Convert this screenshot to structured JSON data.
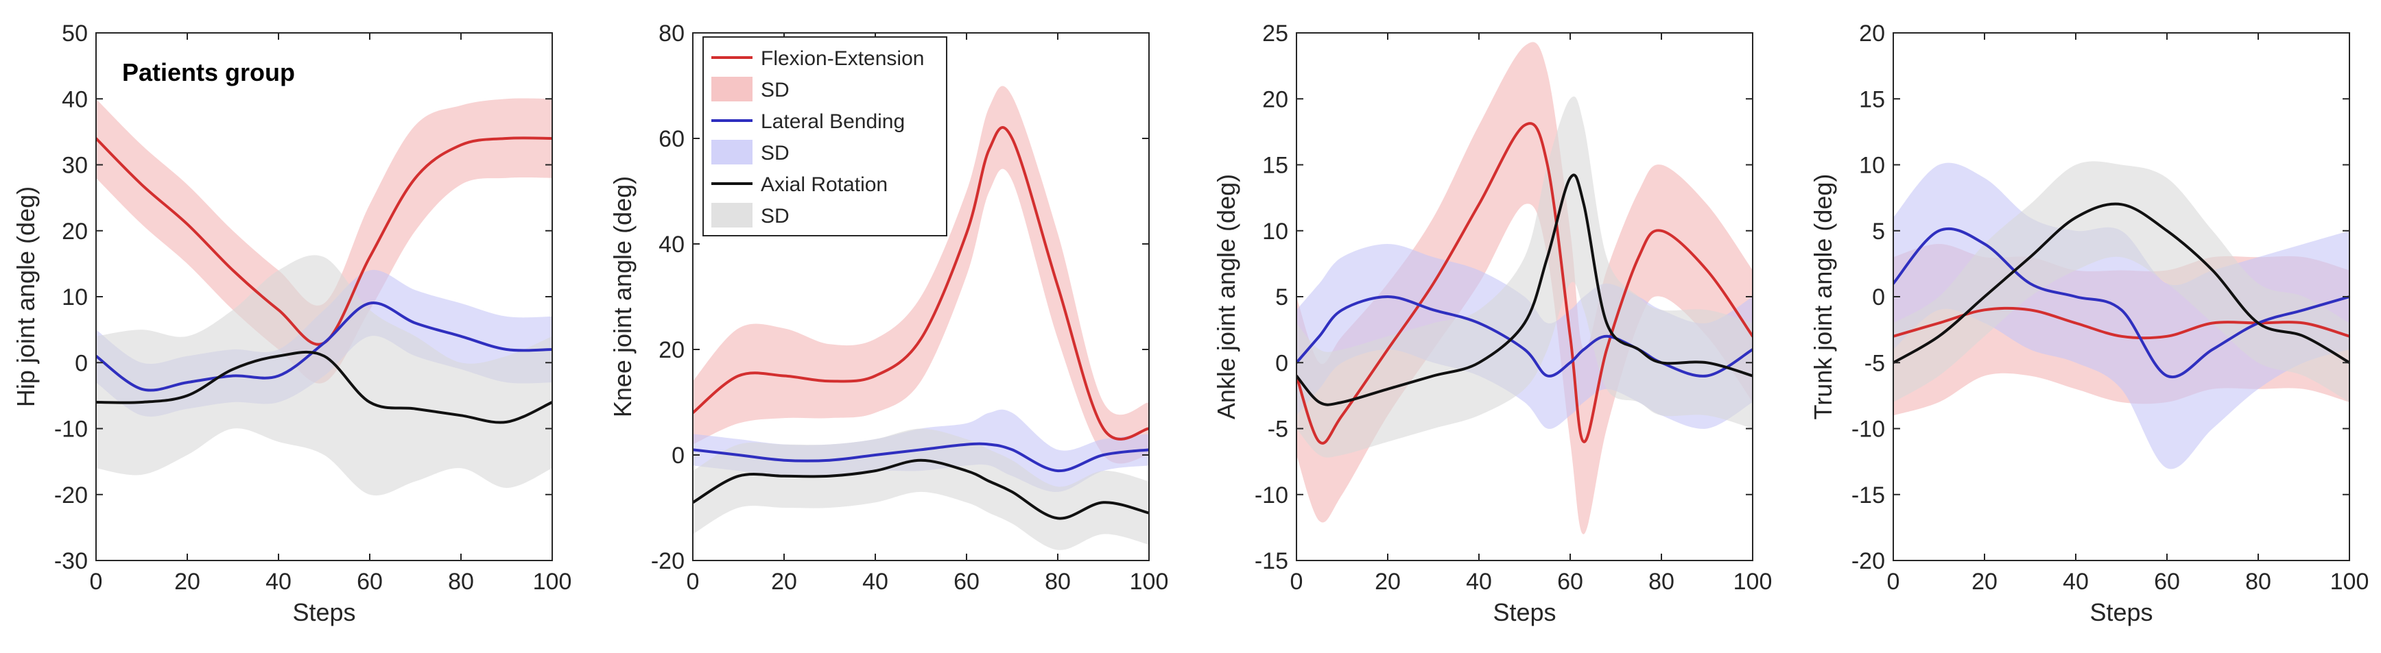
{
  "chart_data": [
    {
      "type": "line",
      "xlabel": "Steps",
      "ylabel": "Hip joint angle (deg)",
      "xlim": [
        0,
        100
      ],
      "ylim": [
        -30,
        50
      ],
      "xticks": [
        "0",
        "20",
        "40",
        "60",
        "80",
        "100"
      ],
      "yticks": [
        "-30",
        "-20",
        "-10",
        "0",
        "10",
        "20",
        "30",
        "40",
        "50"
      ],
      "annotation": "Patients group",
      "x": [
        0,
        10,
        20,
        30,
        40,
        50,
        60,
        70,
        80,
        90,
        100
      ],
      "series": [
        {
          "name": "Flexion-Extension",
          "color": "#d32f2f",
          "band_color": "#f4b6b6",
          "values": [
            34,
            27,
            21,
            14,
            8,
            3,
            16,
            28,
            33,
            34,
            34
          ],
          "sd_lower": [
            28,
            21,
            15,
            8,
            2,
            -3,
            8,
            20,
            27,
            28,
            28
          ],
          "sd_upper": [
            40,
            33,
            27,
            20,
            14,
            9,
            24,
            36,
            39,
            40,
            40
          ]
        },
        {
          "name": "Lateral Bending",
          "color": "#2f2fbf",
          "band_color": "#c7c7f7",
          "values": [
            1,
            -4,
            -3,
            -2,
            -2,
            3,
            9,
            6,
            4,
            2,
            2
          ],
          "sd_lower": [
            -3,
            -8,
            -7,
            -6,
            -6,
            -2,
            4,
            1,
            -1,
            -3,
            -3
          ],
          "sd_upper": [
            5,
            0,
            1,
            2,
            2,
            8,
            14,
            11,
            9,
            7,
            7
          ]
        },
        {
          "name": "Axial Rotation",
          "color": "#111111",
          "band_color": "#d9d9d9",
          "values": [
            -6,
            -6,
            -5,
            -1,
            1,
            1,
            -6,
            -7,
            -8,
            -9,
            -6
          ],
          "sd_lower": [
            -16,
            -17,
            -14,
            -10,
            -12,
            -14,
            -20,
            -18,
            -16,
            -19,
            -16
          ],
          "sd_upper": [
            4,
            5,
            4,
            8,
            14,
            16,
            8,
            4,
            0,
            1,
            4
          ]
        }
      ]
    },
    {
      "type": "line",
      "xlabel": "",
      "ylabel": "Knee joint angle (deg)",
      "xlim": [
        0,
        100
      ],
      "ylim": [
        -20,
        80
      ],
      "xticks": [
        "0",
        "20",
        "40",
        "60",
        "80",
        "100"
      ],
      "yticks": [
        "-20",
        "0",
        "20",
        "40",
        "60",
        "80"
      ],
      "legend": [
        {
          "label": "Flexion-Extension",
          "kind": "line",
          "color": "#d32f2f"
        },
        {
          "label": "SD",
          "kind": "patch",
          "color": "#f4b6b6"
        },
        {
          "label": "Lateral Bending",
          "kind": "line",
          "color": "#2f2fbf"
        },
        {
          "label": "SD",
          "kind": "patch",
          "color": "#c7c7f7"
        },
        {
          "label": "Axial Rotation",
          "kind": "line",
          "color": "#111111"
        },
        {
          "label": "SD",
          "kind": "patch",
          "color": "#d9d9d9"
        }
      ],
      "x": [
        0,
        10,
        20,
        30,
        40,
        50,
        60,
        65,
        70,
        80,
        90,
        100
      ],
      "series": [
        {
          "name": "Flexion-Extension",
          "color": "#d32f2f",
          "band_color": "#f4b6b6",
          "values": [
            8,
            15,
            15,
            14,
            15,
            22,
            42,
            58,
            60,
            32,
            5,
            5
          ],
          "sd_lower": [
            2,
            6,
            7,
            7,
            8,
            14,
            34,
            50,
            52,
            22,
            0,
            0
          ],
          "sd_upper": [
            14,
            24,
            24,
            21,
            22,
            30,
            50,
            66,
            68,
            42,
            10,
            10
          ]
        },
        {
          "name": "Lateral Bending",
          "color": "#2f2fbf",
          "band_color": "#c7c7f7",
          "values": [
            1,
            0,
            -1,
            -1,
            0,
            1,
            2,
            2,
            1,
            -3,
            0,
            1
          ],
          "sd_lower": [
            -2,
            -3,
            -4,
            -4,
            -3,
            -3,
            -2,
            -2,
            -4,
            -7,
            -3,
            -2
          ],
          "sd_upper": [
            4,
            3,
            2,
            2,
            3,
            5,
            6,
            8,
            8,
            1,
            3,
            4
          ]
        },
        {
          "name": "Axial Rotation",
          "color": "#111111",
          "band_color": "#d9d9d9",
          "values": [
            -9,
            -4,
            -4,
            -4,
            -3,
            -1,
            -3,
            -5,
            -7,
            -12,
            -9,
            -11
          ],
          "sd_lower": [
            -15,
            -10,
            -10,
            -10,
            -9,
            -7,
            -9,
            -11,
            -13,
            -18,
            -15,
            -17
          ],
          "sd_upper": [
            -3,
            2,
            2,
            2,
            3,
            5,
            3,
            1,
            -1,
            -6,
            -3,
            -5
          ]
        }
      ]
    },
    {
      "type": "line",
      "xlabel": "Steps",
      "ylabel": "Ankle joint angle (deg)",
      "xlim": [
        0,
        100
      ],
      "ylim": [
        -15,
        25
      ],
      "xticks": [
        "0",
        "20",
        "40",
        "60",
        "80",
        "100"
      ],
      "yticks": [
        "-15",
        "-10",
        "-5",
        "0",
        "5",
        "10",
        "15",
        "20",
        "25"
      ],
      "x": [
        0,
        5,
        10,
        20,
        30,
        40,
        50,
        55,
        60,
        63,
        68,
        75,
        80,
        90,
        100
      ],
      "series": [
        {
          "name": "Flexion-Extension",
          "color": "#d32f2f",
          "band_color": "#f4b6b6",
          "values": [
            -1,
            -6,
            -4,
            1,
            6,
            12,
            18,
            15,
            2,
            -6,
            1,
            8,
            10,
            7,
            2
          ],
          "sd_lower": [
            -7,
            -12,
            -10,
            -4,
            1,
            6,
            12,
            8,
            -6,
            -13,
            -5,
            3,
            5,
            2,
            -3
          ],
          "sd_upper": [
            5,
            0,
            2,
            6,
            11,
            18,
            24,
            22,
            10,
            1,
            7,
            13,
            15,
            12,
            7
          ]
        },
        {
          "name": "Lateral Bending",
          "color": "#2f2fbf",
          "band_color": "#c7c7f7",
          "values": [
            0,
            2,
            4,
            5,
            4,
            3,
            1,
            -1,
            0,
            1,
            2,
            1,
            0,
            -1,
            1
          ],
          "sd_lower": [
            -4,
            -2,
            0,
            1,
            0,
            -1,
            -3,
            -5,
            -4,
            -3,
            -2,
            -3,
            -4,
            -5,
            -3
          ],
          "sd_upper": [
            4,
            6,
            8,
            9,
            8,
            7,
            5,
            3,
            4,
            5,
            6,
            5,
            4,
            3,
            5
          ]
        },
        {
          "name": "Axial Rotation",
          "color": "#111111",
          "band_color": "#d9d9d9",
          "values": [
            -1,
            -3,
            -3,
            -2,
            -1,
            0,
            3,
            8,
            14,
            12,
            3,
            1,
            0,
            0,
            -1
          ],
          "sd_lower": [
            -5,
            -7,
            -7,
            -6,
            -5,
            -4,
            -2,
            1,
            6,
            4,
            -2,
            -3,
            -4,
            -4,
            -5
          ],
          "sd_upper": [
            3,
            1,
            1,
            2,
            3,
            4,
            8,
            15,
            20,
            18,
            8,
            5,
            4,
            4,
            3
          ]
        }
      ]
    },
    {
      "type": "line",
      "xlabel": "Steps",
      "ylabel": "Trunk joint angle (deg)",
      "xlim": [
        0,
        100
      ],
      "ylim": [
        -20,
        20
      ],
      "xticks": [
        "0",
        "20",
        "40",
        "60",
        "80",
        "100"
      ],
      "yticks": [
        "-20",
        "-15",
        "-10",
        "-5",
        "0",
        "5",
        "10",
        "15",
        "20"
      ],
      "x": [
        0,
        10,
        20,
        30,
        40,
        50,
        60,
        70,
        80,
        90,
        100
      ],
      "series": [
        {
          "name": "Flexion-Extension",
          "color": "#d32f2f",
          "band_color": "#f4b6b6",
          "values": [
            -3,
            -2,
            -1,
            -1,
            -2,
            -3,
            -3,
            -2,
            -2,
            -2,
            -3
          ],
          "sd_lower": [
            -9,
            -8,
            -6,
            -6,
            -7,
            -8,
            -8,
            -7,
            -7,
            -7,
            -8
          ],
          "sd_upper": [
            3,
            4,
            3,
            3,
            2,
            2,
            2,
            3,
            3,
            3,
            2
          ]
        },
        {
          "name": "Lateral Bending",
          "color": "#2f2fbf",
          "band_color": "#c7c7f7",
          "values": [
            1,
            5,
            4,
            1,
            0,
            -1,
            -6,
            -4,
            -2,
            -1,
            0
          ],
          "sd_lower": [
            -4,
            -1,
            -2,
            -4,
            -5,
            -7,
            -13,
            -10,
            -7,
            -5,
            -4
          ],
          "sd_upper": [
            6,
            10,
            9,
            6,
            5,
            5,
            1,
            2,
            3,
            4,
            5
          ]
        },
        {
          "name": "Axial Rotation",
          "color": "#111111",
          "band_color": "#d9d9d9",
          "values": [
            -5,
            -3,
            0,
            3,
            6,
            7,
            5,
            2,
            -2,
            -3,
            -5
          ],
          "sd_lower": [
            -8,
            -6,
            -3,
            0,
            2,
            3,
            1,
            -2,
            -5,
            -6,
            -8
          ],
          "sd_upper": [
            -2,
            0,
            4,
            7,
            10,
            10,
            9,
            5,
            1,
            0,
            -2
          ]
        }
      ]
    }
  ]
}
